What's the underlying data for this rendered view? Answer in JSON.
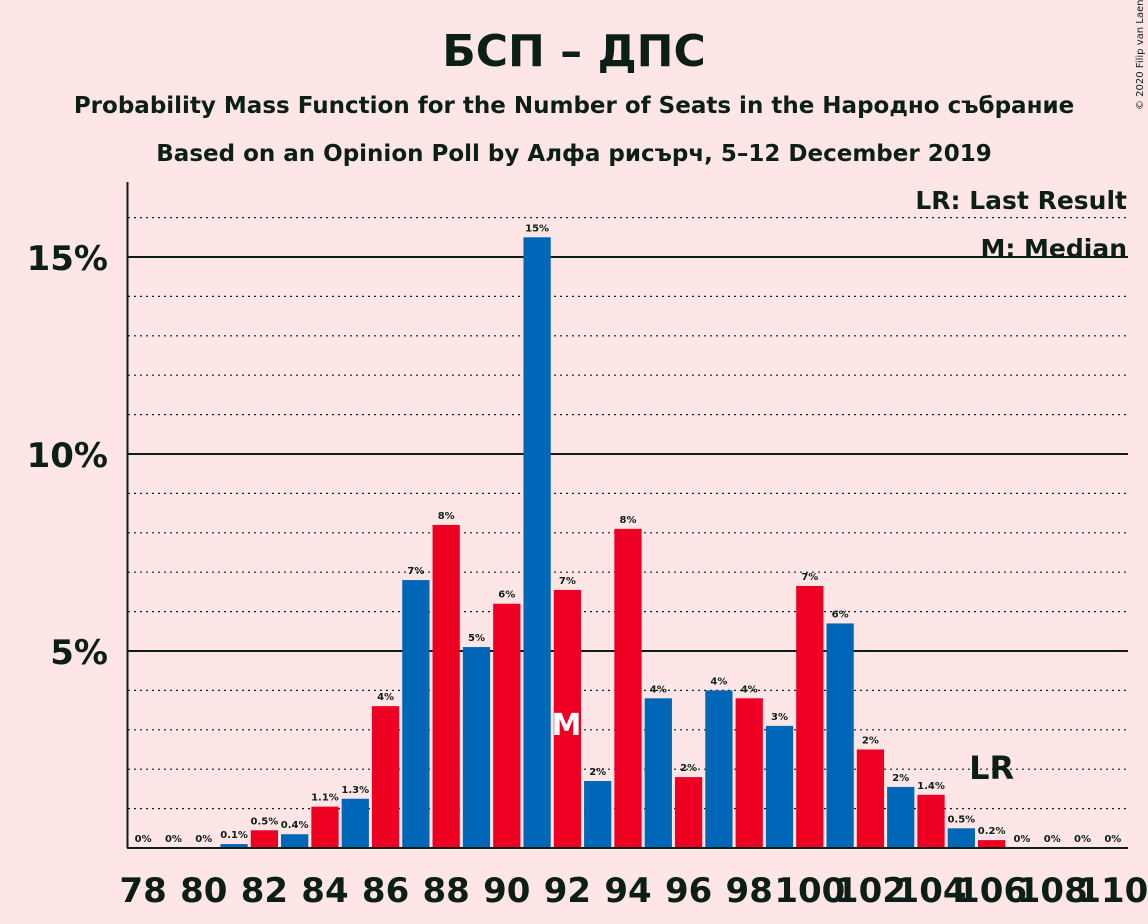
{
  "chart_data": {
    "type": "bar",
    "title": "БСП – ДПС",
    "subtitle1": "Probability Mass Function for the Number of Seats in the Народно събрание",
    "subtitle2": "Based on an Opinion Poll by Алфа рисърч, 5–12 December 2019",
    "copyright": "© 2020 Filip van Laenen",
    "x": [
      78,
      79,
      80,
      81,
      82,
      83,
      84,
      85,
      86,
      87,
      88,
      89,
      90,
      91,
      92,
      93,
      94,
      95,
      96,
      97,
      98,
      99,
      100,
      101,
      102,
      103,
      104,
      105,
      106,
      107,
      108,
      109,
      110
    ],
    "values": [
      0,
      0,
      0,
      0.1,
      0.45,
      0.35,
      1.05,
      1.25,
      3.6,
      6.8,
      8.2,
      5.1,
      6.2,
      15.5,
      6.55,
      1.7,
      8.1,
      3.8,
      1.8,
      4.0,
      3.8,
      3.1,
      6.65,
      5.7,
      2.5,
      1.55,
      1.35,
      0.5,
      0.2,
      0,
      0,
      0,
      0
    ],
    "data_labels": [
      "0%",
      "0%",
      "0%",
      "0.1%",
      "0.5%",
      "0.4%",
      "1.1%",
      "1.3%",
      "4%",
      "7%",
      "8%",
      "5%",
      "6%",
      "15%",
      "7%",
      "2%",
      "8%",
      "4%",
      "2%",
      "4%",
      "4%",
      "3%",
      "7%",
      "6%",
      "2%",
      "2%",
      "1.4%",
      "0.5%",
      "0.2%",
      "0%",
      "0%",
      "0%",
      "0%"
    ],
    "xtick_labels": [
      "78",
      "80",
      "82",
      "84",
      "86",
      "88",
      "90",
      "92",
      "94",
      "96",
      "98",
      "100",
      "102",
      "104",
      "106",
      "108",
      "110"
    ],
    "ytick_labels": [
      "5%",
      "10%",
      "15%"
    ],
    "yticks": [
      5,
      10,
      15
    ],
    "ylim": [
      0,
      17
    ],
    "colors": {
      "red": "#ED0022",
      "blue": "#0066B8",
      "background": "#FFE6E6",
      "text": "#0C1F16"
    },
    "last_result_seat": 106,
    "median_seat": 92,
    "lr_marker": "LR",
    "median_marker": "M",
    "legend": [
      "LR: Last Result",
      "M: Median"
    ]
  }
}
